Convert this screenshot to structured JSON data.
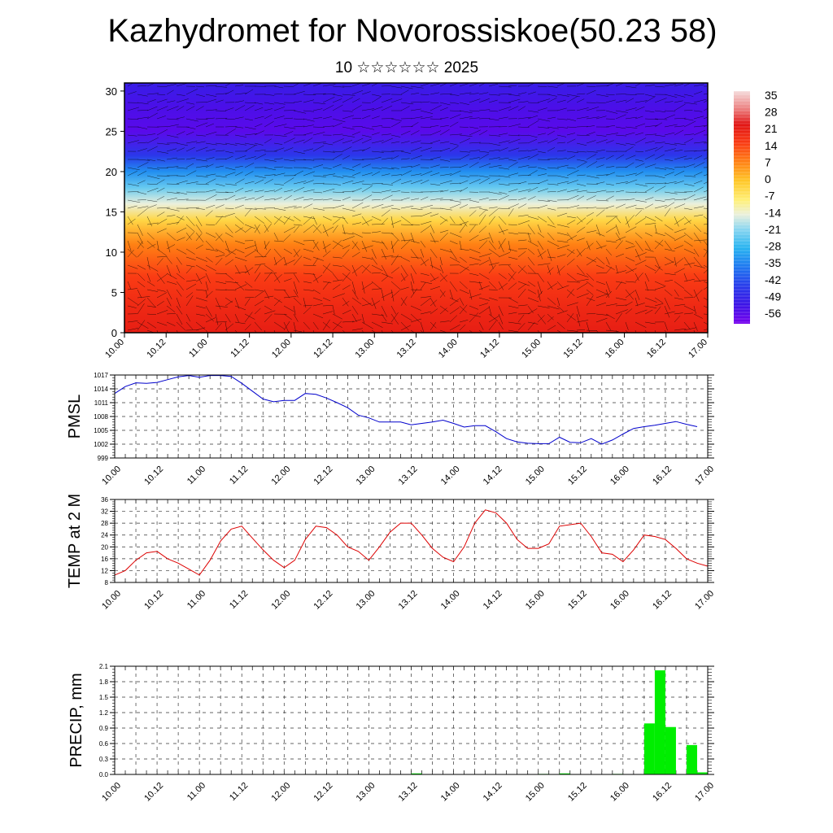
{
  "header": {
    "title": "Kazhydromet for Novorossiskoe(50.23 58)",
    "subtitle": "10 ☆☆☆☆☆☆ 2025"
  },
  "colors": {
    "pmsl_line": "#0000cc",
    "temp_line": "#dd0000",
    "precip_bar": "#00ee00",
    "grid": "#333333"
  },
  "chart_data": [
    {
      "type": "heatmap",
      "title": "",
      "x_tick_labels": [
        "10.00",
        "10.12",
        "11.00",
        "11.12",
        "12.00",
        "12.12",
        "13.00",
        "13.12",
        "14.00",
        "14.12",
        "15.00",
        "15.12",
        "16.00",
        "16.12",
        "17.00"
      ],
      "y_ticks": [
        0,
        5,
        10,
        15,
        20,
        25,
        30
      ],
      "ylim": [
        0,
        31
      ],
      "colorbar_labels": [
        "35",
        "28",
        "21",
        "14",
        "7",
        "0",
        "-7",
        "-14",
        "-21",
        "-28",
        "-35",
        "-42",
        "-49",
        "-56"
      ],
      "colorbar_range": [
        -60,
        38
      ],
      "vertical_profile": [
        {
          "height": 0,
          "value": 22
        },
        {
          "height": 3,
          "value": 20
        },
        {
          "height": 7,
          "value": 16
        },
        {
          "height": 11,
          "value": 8
        },
        {
          "height": 14,
          "value": -3
        },
        {
          "height": 16,
          "value": -14
        },
        {
          "height": 18,
          "value": -23
        },
        {
          "height": 20,
          "value": -33
        },
        {
          "height": 22,
          "value": -45
        },
        {
          "height": 25,
          "value": -56
        },
        {
          "height": 28,
          "value": -54
        },
        {
          "height": 31,
          "value": -50
        }
      ],
      "wind_arrows": true
    },
    {
      "type": "line",
      "ylabel": "PMSL",
      "x_tick_labels": [
        "10.00",
        "10.12",
        "11.00",
        "11.12",
        "12.00",
        "12.12",
        "13.00",
        "13.12",
        "14.00",
        "14.12",
        "15.00",
        "15.12",
        "16.00",
        "16.12",
        "17.00"
      ],
      "y_ticks": [
        999,
        1002,
        1005,
        1008,
        1011,
        1014,
        1017
      ],
      "ylim": [
        999,
        1017
      ],
      "x_hours": [
        0,
        3,
        6,
        9,
        12,
        15,
        18,
        21,
        24,
        27,
        30,
        33,
        36,
        39,
        42,
        45,
        48,
        51,
        54,
        57,
        60,
        63,
        66,
        69,
        72,
        75,
        78,
        81,
        84,
        87,
        90,
        93,
        96,
        99,
        102,
        105,
        108,
        111,
        114,
        117,
        120,
        123,
        126,
        129,
        132,
        135,
        138,
        141,
        144,
        147,
        150,
        153,
        156,
        159,
        162,
        165
      ],
      "values": [
        1013.0,
        1014.5,
        1015.3,
        1015.2,
        1015.4,
        1016.0,
        1016.6,
        1016.9,
        1016.5,
        1016.9,
        1016.9,
        1016.7,
        1015.2,
        1013.5,
        1011.8,
        1011.2,
        1011.5,
        1011.5,
        1013.0,
        1012.8,
        1012.0,
        1011.0,
        1009.9,
        1008.3,
        1007.7,
        1006.8,
        1006.8,
        1006.8,
        1006.2,
        1006.5,
        1006.8,
        1007.2,
        1006.5,
        1005.7,
        1006.0,
        1006.0,
        1004.7,
        1003.2,
        1002.5,
        1002.2,
        1002.1,
        1002.1,
        1003.5,
        1002.4,
        1002.3,
        1003.2,
        1002.0,
        1002.9,
        1004.2,
        1005.4,
        1005.8,
        1006.1,
        1006.5,
        1006.9,
        1006.3,
        1005.8
      ]
    },
    {
      "type": "line",
      "ylabel": "TEMP at 2 M",
      "x_tick_labels": [
        "10.00",
        "10.12",
        "11.00",
        "11.12",
        "12.00",
        "12.12",
        "13.00",
        "13.12",
        "14.00",
        "14.12",
        "15.00",
        "15.12",
        "16.00",
        "16.12",
        "17.00"
      ],
      "y_ticks": [
        8,
        12,
        16,
        20,
        24,
        28,
        32,
        36
      ],
      "ylim": [
        8,
        36
      ],
      "x_hours": [
        0,
        3,
        6,
        9,
        12,
        15,
        18,
        21,
        24,
        27,
        30,
        33,
        36,
        39,
        42,
        45,
        48,
        51,
        54,
        57,
        60,
        63,
        66,
        69,
        72,
        75,
        78,
        81,
        84,
        87,
        90,
        93,
        96,
        99,
        102,
        105,
        108,
        111,
        114,
        117,
        120,
        123,
        126,
        129,
        132,
        135,
        138,
        141,
        144,
        147,
        150,
        153,
        156,
        159,
        162,
        165,
        168
      ],
      "values": [
        10.5,
        12.0,
        15.5,
        18.0,
        18.5,
        16.0,
        14.5,
        12.5,
        10.5,
        15.5,
        22.0,
        26.0,
        27.0,
        23.0,
        19.0,
        15.5,
        13.0,
        15.5,
        22.5,
        27.0,
        26.5,
        24.0,
        20.0,
        18.5,
        15.5,
        20.0,
        25.0,
        28.0,
        28.0,
        24.0,
        19.5,
        16.5,
        15.0,
        20.0,
        28.0,
        32.5,
        31.5,
        28.0,
        22.5,
        19.5,
        19.5,
        21.0,
        27.0,
        27.5,
        28.0,
        23.5,
        18.0,
        17.5,
        15.0,
        19.0,
        24.0,
        23.5,
        22.5,
        19.5,
        16.0,
        14.5,
        13.5
      ]
    },
    {
      "type": "bar",
      "ylabel": "PRECIP, mm",
      "x_tick_labels": [
        "10.00",
        "10.12",
        "11.00",
        "11.12",
        "12.00",
        "12.12",
        "13.00",
        "13.12",
        "14.00",
        "14.12",
        "15.00",
        "15.12",
        "16.00",
        "16.12",
        "17.00"
      ],
      "y_ticks": [
        "0.0",
        "0.3",
        "0.6",
        "0.9",
        "1.2",
        "1.5",
        "1.8",
        "2.1"
      ],
      "ylim": [
        0,
        2.1
      ],
      "bars": [
        {
          "start_hour": 84,
          "end_hour": 87,
          "value": 0.02
        },
        {
          "start_hour": 120,
          "end_hour": 123,
          "value": 0.01
        },
        {
          "start_hour": 126,
          "end_hour": 129,
          "value": 0.02
        },
        {
          "start_hour": 141,
          "end_hour": 144,
          "value": 0.01
        },
        {
          "start_hour": 150,
          "end_hour": 153,
          "value": 0.99
        },
        {
          "start_hour": 153,
          "end_hour": 156,
          "value": 2.02
        },
        {
          "start_hour": 156,
          "end_hour": 159,
          "value": 0.92
        },
        {
          "start_hour": 162,
          "end_hour": 165,
          "value": 0.57
        },
        {
          "start_hour": 165,
          "end_hour": 168,
          "value": 0.04
        }
      ]
    }
  ]
}
